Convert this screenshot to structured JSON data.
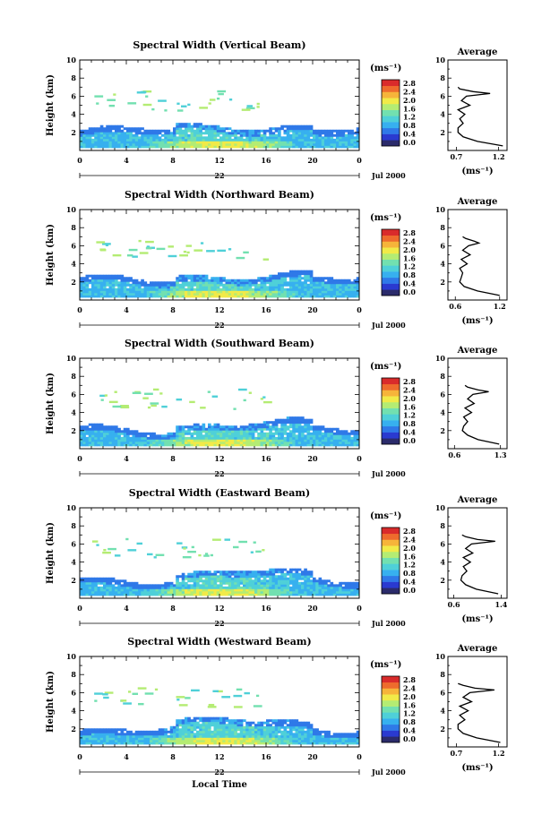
{
  "figure": {
    "xlabel_bottom": "Local Time",
    "date_label": "Jul 2000",
    "day_label": "22",
    "colorbar_unit": "(ms⁻¹)",
    "colorbar_ticks": [
      "0.0",
      "0.4",
      "0.8",
      "1.2",
      "1.6",
      "2.0",
      "2.4",
      "2.8"
    ],
    "colors": {
      "colormap": [
        "#2b2b6b",
        "#2a3ad0",
        "#2f79e8",
        "#37b0ef",
        "#4fd0d8",
        "#72e0b0",
        "#b4ec73",
        "#f1ea48",
        "#f6b43a",
        "#ee6b2d",
        "#d92b2b"
      ]
    }
  },
  "chart_data": [
    {
      "type": "heatmap",
      "title": "Spectral Width (Vertical Beam)",
      "ylabel": "Height (km)",
      "ylim": [
        0,
        10
      ],
      "xlim": [
        0,
        24
      ],
      "xticks": [
        "0",
        "4",
        "8",
        "12",
        "16",
        "20",
        "0"
      ],
      "yticks": [
        "2",
        "4",
        "6",
        "8",
        "10"
      ],
      "colorbar": {
        "range": [
          0.0,
          2.8
        ],
        "unit": "(ms⁻¹)"
      },
      "average_profile": {
        "title": "Average",
        "xlabel": "(ms⁻¹)",
        "xticks": [
          "0.7",
          "1.2"
        ],
        "xlim": [
          0.6,
          1.3
        ],
        "height": [
          0.5,
          1.0,
          1.5,
          2.0,
          2.5,
          3.0,
          3.5,
          4.0,
          4.5,
          5.0,
          5.5,
          6.0,
          6.3,
          6.5,
          6.8,
          7.0
        ],
        "width": [
          1.25,
          0.95,
          0.78,
          0.72,
          0.72,
          0.78,
          0.74,
          0.8,
          0.72,
          0.86,
          0.76,
          0.82,
          1.1,
          0.9,
          0.74,
          0.72
        ]
      }
    },
    {
      "type": "heatmap",
      "title": "Spectral Width (Northward Beam)",
      "ylabel": "Height (km)",
      "ylim": [
        0,
        10
      ],
      "xlim": [
        0,
        24
      ],
      "xticks": [
        "0",
        "4",
        "8",
        "12",
        "16",
        "20",
        "0"
      ],
      "yticks": [
        "2",
        "4",
        "6",
        "8",
        "10"
      ],
      "colorbar": {
        "range": [
          0.0,
          2.8
        ],
        "unit": "(ms⁻¹)"
      },
      "average_profile": {
        "title": "Average",
        "xlabel": "(ms⁻¹)",
        "xticks": [
          "0.6",
          "1.2"
        ],
        "xlim": [
          0.5,
          1.3
        ],
        "height": [
          0.5,
          1.0,
          1.5,
          2.0,
          2.5,
          3.0,
          3.5,
          4.0,
          4.5,
          5.0,
          5.5,
          6.0,
          6.3,
          6.5,
          6.8,
          7.0
        ],
        "width": [
          1.2,
          0.9,
          0.72,
          0.66,
          0.68,
          0.7,
          0.66,
          0.76,
          0.68,
          0.8,
          0.7,
          0.78,
          0.92,
          0.86,
          0.74,
          0.7
        ]
      }
    },
    {
      "type": "heatmap",
      "title": "Spectral Width (Southward Beam)",
      "ylabel": "Height (km)",
      "ylim": [
        0,
        10
      ],
      "xlim": [
        0,
        24
      ],
      "xticks": [
        "0",
        "4",
        "8",
        "12",
        "16",
        "20",
        "0"
      ],
      "yticks": [
        "2",
        "4",
        "6",
        "8",
        "10"
      ],
      "colorbar": {
        "range": [
          0.0,
          2.8
        ],
        "unit": "(ms⁻¹)"
      },
      "average_profile": {
        "title": "Average",
        "xlabel": "",
        "xticks": [
          "0.6",
          "1.3"
        ],
        "xlim": [
          0.5,
          1.4
        ],
        "height": [
          0.5,
          1.0,
          1.5,
          2.0,
          2.5,
          3.0,
          3.5,
          4.0,
          4.5,
          5.0,
          5.5,
          6.0,
          6.3,
          6.5,
          6.8,
          7.0
        ],
        "width": [
          1.28,
          0.96,
          0.8,
          0.72,
          0.74,
          0.8,
          0.74,
          0.86,
          0.76,
          0.9,
          0.8,
          0.88,
          1.12,
          0.96,
          0.8,
          0.76
        ]
      }
    },
    {
      "type": "heatmap",
      "title": "Spectral Width (Eastward Beam)",
      "ylabel": "Height (km)",
      "ylim": [
        0,
        10
      ],
      "xlim": [
        0,
        24
      ],
      "xticks": [
        "0",
        "4",
        "8",
        "12",
        "16",
        "20",
        "0"
      ],
      "yticks": [
        "2",
        "4",
        "6",
        "8",
        "10"
      ],
      "colorbar": {
        "range": [
          0.0,
          2.8
        ],
        "unit": "(ms⁻¹)"
      },
      "average_profile": {
        "title": "Average",
        "xlabel": "(ms⁻¹)",
        "xticks": [
          "0.6",
          "1.4"
        ],
        "xlim": [
          0.5,
          1.5
        ],
        "height": [
          0.5,
          1.0,
          1.5,
          2.0,
          2.5,
          3.0,
          3.5,
          4.0,
          4.5,
          5.0,
          5.5,
          6.0,
          6.3,
          6.5,
          6.8,
          7.0
        ],
        "width": [
          1.35,
          0.98,
          0.8,
          0.72,
          0.74,
          0.82,
          0.76,
          0.88,
          0.76,
          0.92,
          0.8,
          0.9,
          1.3,
          1.0,
          0.8,
          0.74
        ]
      }
    },
    {
      "type": "heatmap",
      "title": "Spectral Width (Westward Beam)",
      "ylabel": "Height (km)",
      "ylim": [
        0,
        10
      ],
      "xlim": [
        0,
        24
      ],
      "xticks": [
        "0",
        "4",
        "8",
        "12",
        "16",
        "20",
        "0"
      ],
      "yticks": [
        "2",
        "4",
        "6",
        "8",
        "10"
      ],
      "colorbar": {
        "range": [
          0.0,
          2.8
        ],
        "unit": "(ms⁻¹)"
      },
      "average_profile": {
        "title": "Average",
        "xlabel": "(ms⁻¹)",
        "xticks": [
          "0.7",
          "1.2"
        ],
        "xlim": [
          0.6,
          1.3
        ],
        "height": [
          0.5,
          1.0,
          1.5,
          2.0,
          2.5,
          3.0,
          3.5,
          4.0,
          4.5,
          5.0,
          5.5,
          6.0,
          6.3,
          6.5,
          6.8,
          7.0
        ],
        "width": [
          1.22,
          0.94,
          0.78,
          0.72,
          0.72,
          0.8,
          0.74,
          0.84,
          0.74,
          0.88,
          0.78,
          0.86,
          1.15,
          0.92,
          0.78,
          0.72
        ]
      }
    }
  ]
}
